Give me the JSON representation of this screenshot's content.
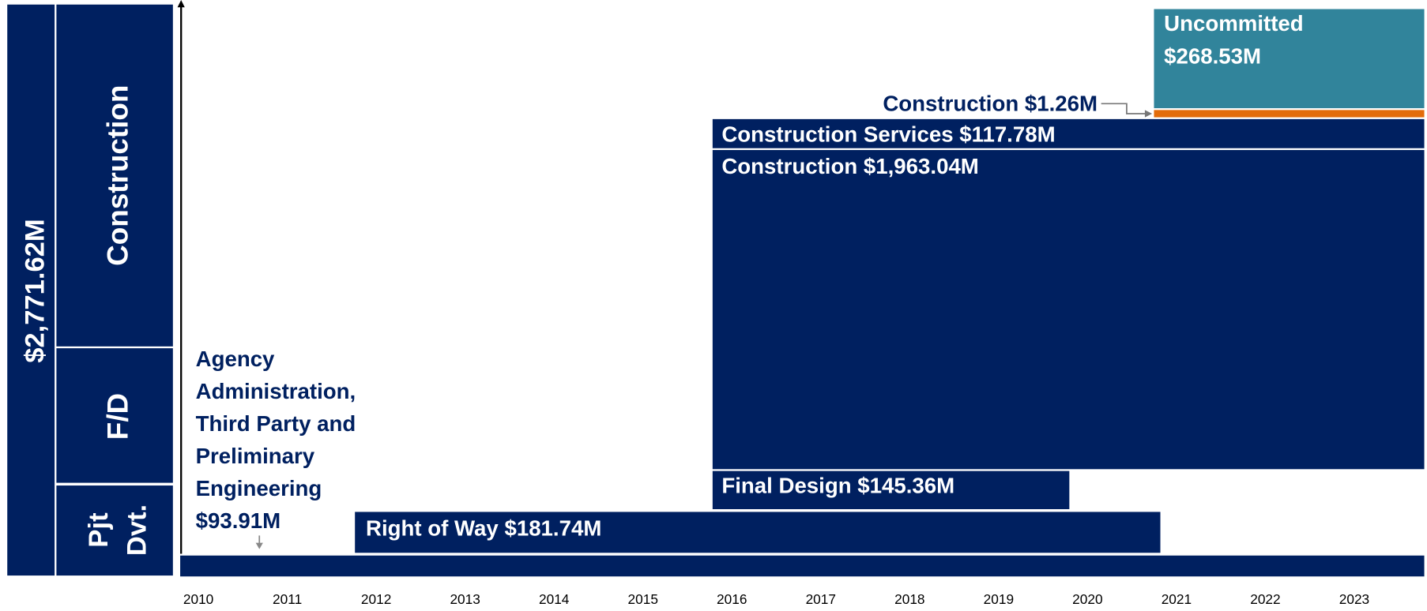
{
  "total": "$2,771.62M",
  "phases": {
    "construction": "Construction",
    "final_design": "F/D",
    "project_development": [
      "Pjt",
      "Dvt."
    ]
  },
  "bars": {
    "uncommitted": [
      "Uncommitted",
      "$268.53M"
    ],
    "construction_small": "Construction $1.26M",
    "construction_services": "Construction Services $117.78M",
    "construction": "Construction $1,963.04M",
    "final_design": "Final Design $145.36M",
    "right_of_way": "Right of Way $181.74M",
    "agency": [
      "Agency",
      "Administration,",
      "Third Party and",
      "Preliminary",
      "Engineering",
      "$93.91M"
    ]
  },
  "years": [
    "2010",
    "2011",
    "2012",
    "2013",
    "2014",
    "2015",
    "2016",
    "2017",
    "2018",
    "2019",
    "2020",
    "2021",
    "2022",
    "2023"
  ]
}
